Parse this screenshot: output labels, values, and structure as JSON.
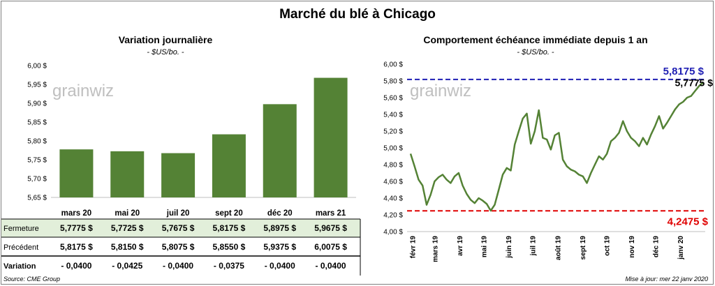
{
  "title": "Marché du blé à Chicago",
  "source": "Source: CME Group",
  "update": "Mise à jour: mer 22 janv 2020",
  "watermark": "grainwiz",
  "colors": {
    "bar": "#548235",
    "line": "#548235",
    "max_line": "#1f1fb4",
    "min_line": "#e00000",
    "table_highlight": "#e2efda",
    "negative": "#e00000"
  },
  "chart_data": [
    {
      "type": "bar",
      "title": "Variation journalière",
      "subtitle": "- $US/bo. -",
      "categories": [
        "mars 20",
        "mai 20",
        "juil 20",
        "sept 20",
        "déc 20",
        "mars 21"
      ],
      "values": [
        5.7775,
        5.7725,
        5.7675,
        5.8175,
        5.8975,
        5.9675
      ],
      "ylim": [
        5.65,
        6.0
      ],
      "yticks": [
        "5,65 $",
        "5,70 $",
        "5,75 $",
        "5,80 $",
        "5,85 $",
        "5,90 $",
        "5,95 $",
        "6,00 $"
      ],
      "table": {
        "rows": [
          {
            "label": "Fermeture",
            "cells": [
              "5,7775  $",
              "5,7725  $",
              "5,7675  $",
              "5,8175  $",
              "5,8975  $",
              "5,9675  $"
            ]
          },
          {
            "label": "Précédent",
            "cells": [
              "5,8175  $",
              "5,8150  $",
              "5,8075  $",
              "5,8550  $",
              "5,9375  $",
              "6,0075  $"
            ]
          },
          {
            "label": "Variation",
            "cells": [
              "- 0,0400",
              "- 0,0425",
              "- 0,0400",
              "- 0,0375",
              "- 0,0400",
              "- 0,0400"
            ]
          }
        ]
      }
    },
    {
      "type": "line",
      "title": "Comportement  échéance immédiate depuis 1 an",
      "subtitle": "- $US/bo. -",
      "ylim": [
        4.0,
        6.0
      ],
      "yticks": [
        "4,00 $",
        "4,20 $",
        "4,40 $",
        "4,60 $",
        "4,80 $",
        "5,00 $",
        "5,20 $",
        "5,40 $",
        "5,60 $",
        "5,80 $",
        "6,00 $"
      ],
      "xticks": [
        "févr 19",
        "mars 19",
        "avr 19",
        "mai 19",
        "juin 19",
        "juil 19",
        "août 19",
        "sept 19",
        "oct 19",
        "nov 19",
        "déc 19",
        "janv 20"
      ],
      "max": {
        "value": 5.8175,
        "label": "5,8175  $"
      },
      "min": {
        "value": 4.2475,
        "label": "4,2475  $"
      },
      "last": {
        "value": 5.7775,
        "label": "5,7775 $"
      },
      "x": [
        "2019-01-22",
        "2019-01-27",
        "2019-02-01",
        "2019-02-06",
        "2019-02-11",
        "2019-02-16",
        "2019-02-21",
        "2019-02-26",
        "2019-03-03",
        "2019-03-08",
        "2019-03-13",
        "2019-03-18",
        "2019-03-23",
        "2019-03-28",
        "2019-04-02",
        "2019-04-07",
        "2019-04-12",
        "2019-04-17",
        "2019-04-22",
        "2019-04-27",
        "2019-05-02",
        "2019-05-07",
        "2019-05-12",
        "2019-05-17",
        "2019-05-22",
        "2019-05-27",
        "2019-06-01",
        "2019-06-06",
        "2019-06-11",
        "2019-06-16",
        "2019-06-21",
        "2019-06-26",
        "2019-07-01",
        "2019-07-06",
        "2019-07-11",
        "2019-07-16",
        "2019-07-21",
        "2019-07-26",
        "2019-07-31",
        "2019-08-05",
        "2019-08-10",
        "2019-08-15",
        "2019-08-20",
        "2019-08-25",
        "2019-08-30",
        "2019-09-04",
        "2019-09-09",
        "2019-09-14",
        "2019-09-19",
        "2019-09-24",
        "2019-09-29",
        "2019-10-04",
        "2019-10-09",
        "2019-10-14",
        "2019-10-19",
        "2019-10-24",
        "2019-10-29",
        "2019-11-03",
        "2019-11-08",
        "2019-11-13",
        "2019-11-18",
        "2019-11-23",
        "2019-11-28",
        "2019-12-03",
        "2019-12-08",
        "2019-12-13",
        "2019-12-18",
        "2019-12-23",
        "2019-12-28",
        "2020-01-02",
        "2020-01-07",
        "2020-01-12",
        "2020-01-17",
        "2020-01-22"
      ],
      "y": [
        4.93,
        4.78,
        4.62,
        4.55,
        4.32,
        4.44,
        4.6,
        4.65,
        4.68,
        4.62,
        4.58,
        4.66,
        4.7,
        4.55,
        4.45,
        4.38,
        4.34,
        4.4,
        4.37,
        4.33,
        4.25,
        4.32,
        4.5,
        4.68,
        4.76,
        4.73,
        5.04,
        5.2,
        5.35,
        5.41,
        5.05,
        5.2,
        5.45,
        5.12,
        5.1,
        4.98,
        5.15,
        5.18,
        4.86,
        4.78,
        4.74,
        4.72,
        4.68,
        4.66,
        4.58,
        4.7,
        4.8,
        4.9,
        4.86,
        4.93,
        5.08,
        5.12,
        5.18,
        5.32,
        5.2,
        5.12,
        5.08,
        5.02,
        5.12,
        5.04,
        5.16,
        5.26,
        5.38,
        5.23,
        5.3,
        5.38,
        5.46,
        5.52,
        5.55,
        5.6,
        5.62,
        5.68,
        5.74,
        5.78
      ]
    }
  ]
}
